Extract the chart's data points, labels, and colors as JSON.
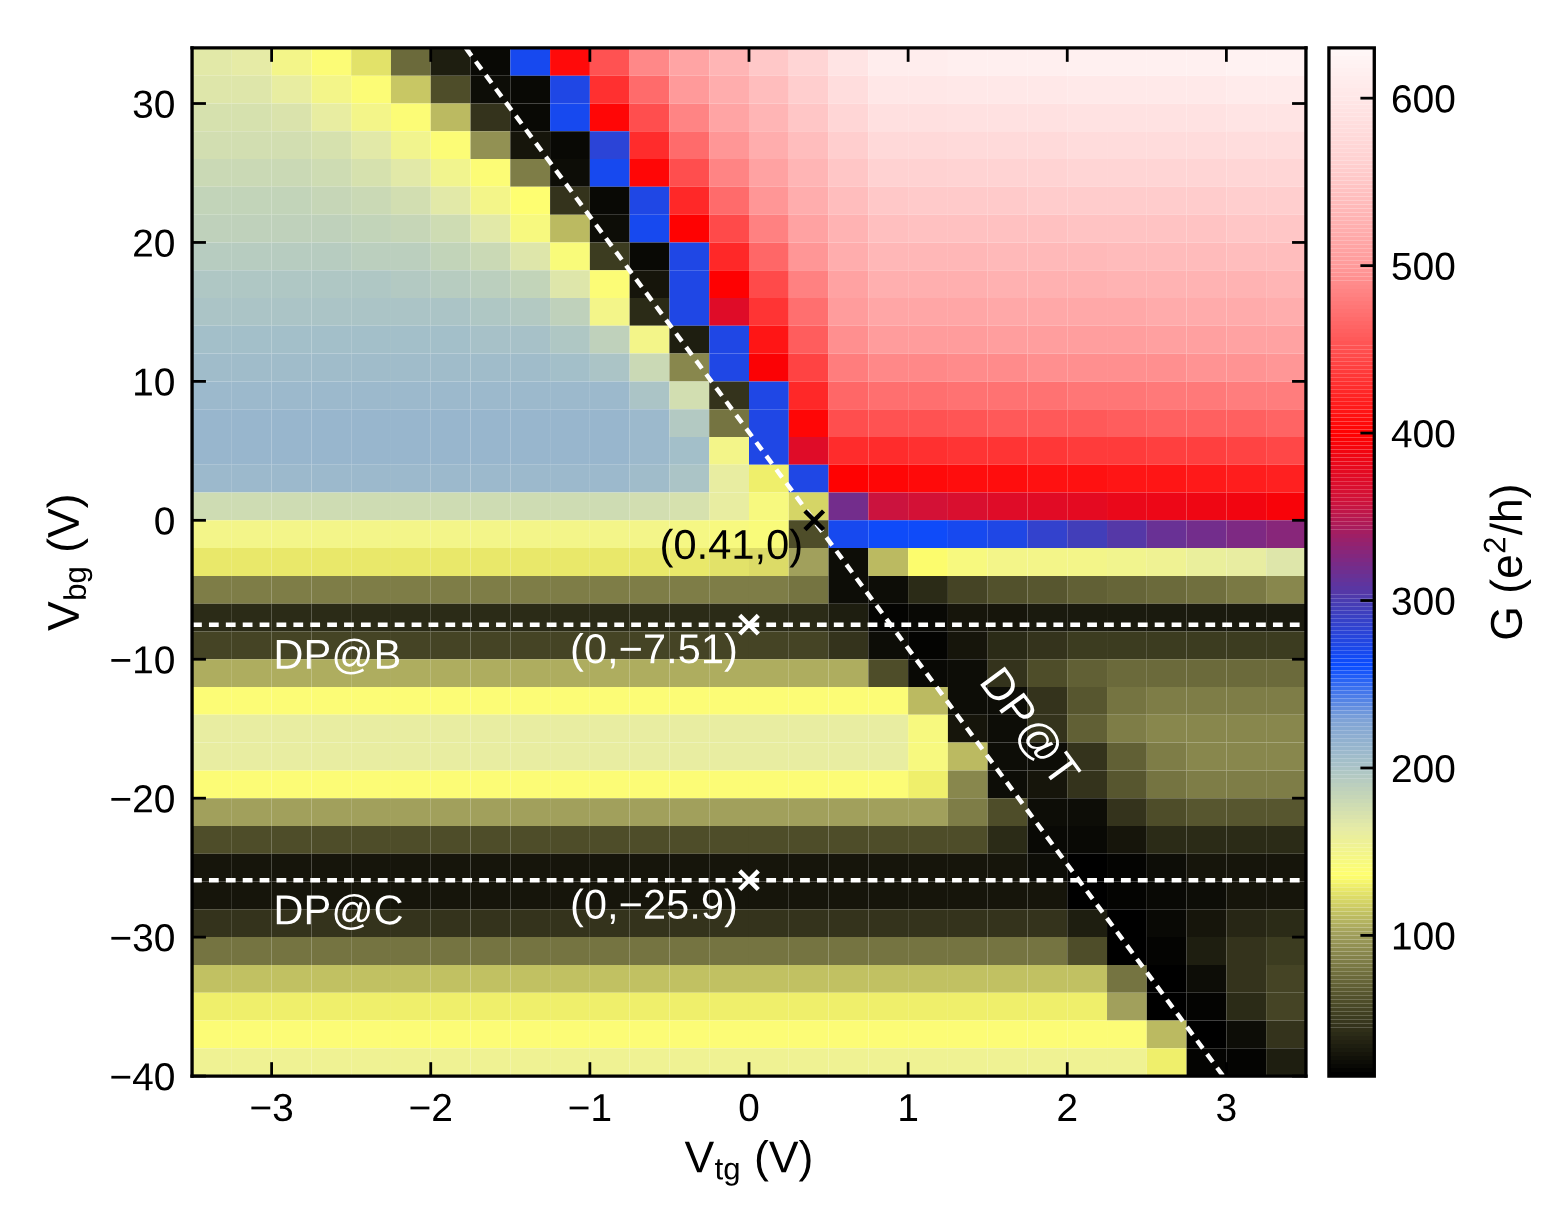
{
  "chart_data": {
    "type": "heatmap",
    "xlabel": "V$_{tg}$ (V)",
    "ylabel": "V$_{bg}$ (V)",
    "clabel": "G (e$^{2}$/h)",
    "x": [
      -3.375,
      -3.125,
      -2.875,
      -2.625,
      -2.375,
      -2.125,
      -1.875,
      -1.625,
      -1.375,
      -1.125,
      -0.875,
      -0.625,
      -0.375,
      -0.125,
      0.125,
      0.375,
      0.625,
      0.875,
      1.125,
      1.375,
      1.625,
      1.875,
      2.125,
      2.375,
      2.625,
      2.875,
      3.125,
      3.375
    ],
    "xlim": [
      -3.5,
      3.5
    ],
    "xticks": [
      {
        "value": -3,
        "label": "−3"
      },
      {
        "value": -2,
        "label": "−2"
      },
      {
        "value": -1,
        "label": "−1"
      },
      0,
      1,
      2,
      3
    ],
    "ylim": [
      -40,
      34
    ],
    "yticks": [
      {
        "value": -40,
        "label": "−40"
      },
      {
        "value": -30,
        "label": "−30"
      },
      {
        "value": -20,
        "label": "−20"
      },
      {
        "value": -10,
        "label": "−10"
      },
      0,
      10,
      20,
      30
    ],
    "clim": [
      16,
      630
    ],
    "cticks": [
      100,
      200,
      300,
      400,
      500,
      600
    ],
    "cells": [
      [
        165,
        163,
        150,
        140,
        125,
        75,
        35,
        22,
        270,
        406,
        452,
        487,
        512,
        531,
        551,
        570,
        595,
        612,
        613,
        614,
        614,
        615,
        616,
        617,
        617,
        618,
        619,
        620
      ],
      [
        168,
        168,
        162,
        150,
        140,
        115,
        60,
        25,
        22,
        275,
        429,
        469,
        499,
        521,
        541,
        560,
        583,
        600,
        601,
        602,
        602,
        603,
        604,
        605,
        605,
        606,
        607,
        608
      ],
      [
        172,
        172,
        170,
        162,
        150,
        140,
        110,
        45,
        22,
        270,
        404,
        450,
        486,
        511,
        531,
        550,
        571,
        588,
        589,
        590,
        590,
        591,
        592,
        593,
        593,
        594,
        595,
        596
      ],
      [
        176,
        176,
        175,
        172,
        165,
        152,
        140,
        95,
        28,
        22,
        280,
        427,
        468,
        498,
        521,
        540,
        560,
        576,
        577,
        578,
        578,
        579,
        580,
        581,
        581,
        582,
        583,
        584
      ],
      [
        180,
        180,
        180,
        178,
        174,
        166,
        152,
        140,
        85,
        25,
        270,
        403,
        449,
        484,
        510,
        530,
        550,
        564,
        565,
        566,
        566,
        567,
        568,
        569,
        569,
        570,
        571,
        572
      ],
      [
        184,
        184,
        184,
        183,
        180,
        176,
        166,
        150,
        138,
        45,
        22,
        275,
        426,
        467,
        498,
        521,
        540,
        553,
        554,
        554,
        555,
        556,
        557,
        557,
        558,
        558,
        559,
        560
      ],
      [
        188,
        188,
        188,
        188,
        186,
        183,
        178,
        165,
        145,
        110,
        25,
        270,
        401,
        447,
        483,
        509,
        529,
        543,
        544,
        545,
        545,
        546,
        547,
        547,
        548,
        548,
        549,
        550
      ],
      [
        192,
        192,
        192,
        192,
        191,
        189,
        186,
        180,
        168,
        142,
        50,
        22,
        275,
        424,
        466,
        497,
        520,
        533,
        534,
        534,
        535,
        536,
        536,
        537,
        538,
        538,
        539,
        540
      ],
      [
        196,
        196,
        196,
        196,
        196,
        195,
        193,
        190,
        184,
        168,
        140,
        30,
        275,
        399,
        446,
        482,
        508,
        523,
        524,
        524,
        525,
        526,
        526,
        527,
        528,
        528,
        529,
        530
      ],
      [
        200,
        200,
        200,
        200,
        200,
        200,
        199,
        197,
        194,
        188,
        150,
        40,
        275,
        372,
        432,
        471,
        501,
        513,
        514,
        514,
        515,
        516,
        516,
        517,
        518,
        518,
        519,
        520
      ],
      [
        204,
        204,
        204,
        204,
        204,
        204,
        204,
        203,
        201,
        197,
        188,
        150,
        35,
        275,
        413,
        458,
        491,
        501,
        502,
        502,
        503,
        504,
        505,
        505,
        506,
        507,
        508,
        509
      ],
      [
        207,
        207,
        207,
        207,
        207,
        207,
        207,
        207,
        206,
        204,
        200,
        180,
        90,
        275,
        395,
        442,
        479,
        487,
        488,
        489,
        490,
        491,
        492,
        493,
        493,
        494,
        495,
        496
      ],
      [
        210,
        210,
        210,
        210,
        210,
        210,
        210,
        210,
        210,
        210,
        208,
        200,
        175,
        45,
        275,
        425,
        466,
        470,
        471,
        472,
        473,
        474,
        475,
        476,
        477,
        478,
        480,
        481
      ],
      [
        212,
        212,
        212,
        212,
        212,
        212,
        212,
        212,
        212,
        212,
        212,
        208,
        195,
        80,
        275,
        403,
        449,
        451,
        452,
        454,
        455,
        456,
        457,
        459,
        460,
        461,
        462,
        463
      ],
      [
        212,
        212,
        212,
        212,
        212,
        212,
        212,
        212,
        212,
        212,
        212,
        210,
        205,
        150,
        275,
        373,
        427,
        428,
        430,
        431,
        433,
        434,
        436,
        437,
        439,
        440,
        442,
        443
      ],
      [
        208,
        208,
        208,
        208,
        208,
        208,
        208,
        208,
        208,
        208,
        208,
        206,
        200,
        160,
        130,
        275,
        402,
        404,
        405,
        407,
        408,
        410,
        411,
        413,
        414,
        416,
        417,
        419
      ],
      [
        178,
        178,
        178,
        178,
        178,
        178,
        178,
        178,
        178,
        178,
        178,
        176,
        172,
        160,
        145,
        120,
        320,
        358,
        362,
        368,
        371,
        375,
        378,
        381,
        384,
        387,
        390,
        393
      ],
      [
        150,
        150,
        150,
        150,
        150,
        150,
        150,
        150,
        150,
        150,
        150,
        148,
        146,
        145,
        142,
        60,
        270,
        265,
        265,
        270,
        275,
        285,
        295,
        305,
        315,
        320,
        325,
        330
      ],
      [
        128,
        128,
        128,
        128,
        128,
        128,
        128,
        128,
        128,
        128,
        128,
        128,
        127,
        125,
        122,
        100,
        25,
        110,
        135,
        145,
        148,
        150,
        150,
        152,
        155,
        158,
        162,
        168
      ],
      [
        85,
        85,
        85,
        85,
        85,
        85,
        85,
        85,
        85,
        85,
        85,
        85,
        85,
        85,
        85,
        80,
        25,
        25,
        40,
        55,
        62,
        66,
        70,
        72,
        75,
        78,
        82,
        88
      ],
      [
        40,
        40,
        40,
        40,
        40,
        40,
        40,
        40,
        40,
        40,
        40,
        40,
        40,
        40,
        40,
        40,
        35,
        20,
        22,
        28,
        30,
        32,
        32,
        32,
        32,
        32,
        32,
        32
      ],
      [
        55,
        55,
        55,
        55,
        55,
        55,
        55,
        55,
        55,
        55,
        55,
        55,
        55,
        55,
        55,
        55,
        45,
        25,
        20,
        30,
        40,
        45,
        50,
        50,
        50,
        50,
        50,
        50
      ],
      [
        105,
        105,
        105,
        105,
        105,
        105,
        105,
        105,
        105,
        105,
        105,
        105,
        105,
        105,
        105,
        105,
        105,
        60,
        22,
        25,
        45,
        60,
        70,
        75,
        75,
        75,
        75,
        75
      ],
      [
        140,
        140,
        140,
        140,
        140,
        140,
        140,
        140,
        140,
        140,
        140,
        140,
        140,
        140,
        140,
        140,
        140,
        140,
        110,
        25,
        25,
        45,
        65,
        80,
        85,
        85,
        85,
        85
      ],
      [
        162,
        162,
        162,
        162,
        162,
        162,
        162,
        162,
        162,
        162,
        162,
        162,
        162,
        162,
        162,
        162,
        162,
        160,
        145,
        30,
        25,
        45,
        70,
        85,
        90,
        90,
        90,
        90
      ],
      [
        162,
        162,
        162,
        162,
        162,
        162,
        162,
        162,
        162,
        162,
        162,
        162,
        162,
        162,
        162,
        162,
        162,
        162,
        145,
        110,
        25,
        25,
        45,
        70,
        85,
        88,
        88,
        88
      ],
      [
        140,
        140,
        140,
        140,
        140,
        140,
        140,
        140,
        140,
        140,
        140,
        140,
        140,
        140,
        140,
        140,
        140,
        140,
        130,
        90,
        25,
        28,
        45,
        65,
        80,
        85,
        85,
        85
      ],
      [
        100,
        100,
        100,
        100,
        100,
        100,
        100,
        100,
        100,
        100,
        100,
        100,
        100,
        100,
        100,
        100,
        100,
        100,
        100,
        85,
        60,
        25,
        25,
        45,
        60,
        65,
        65,
        65
      ],
      [
        60,
        60,
        60,
        60,
        60,
        60,
        60,
        60,
        60,
        60,
        60,
        60,
        60,
        60,
        60,
        60,
        60,
        60,
        60,
        60,
        40,
        22,
        22,
        30,
        40,
        42,
        42,
        42
      ],
      [
        30,
        30,
        30,
        30,
        30,
        30,
        30,
        30,
        30,
        30,
        30,
        30,
        30,
        30,
        30,
        30,
        30,
        30,
        30,
        30,
        30,
        25,
        18,
        20,
        25,
        28,
        30,
        30
      ],
      [
        28,
        28,
        28,
        28,
        28,
        28,
        28,
        28,
        28,
        28,
        28,
        28,
        28,
        28,
        28,
        28,
        28,
        28,
        28,
        28,
        28,
        28,
        18,
        20,
        22,
        25,
        28,
        28
      ],
      [
        45,
        45,
        45,
        45,
        45,
        45,
        45,
        45,
        45,
        45,
        45,
        45,
        45,
        45,
        45,
        45,
        45,
        45,
        45,
        45,
        45,
        45,
        35,
        18,
        22,
        30,
        38,
        40
      ],
      [
        80,
        80,
        80,
        80,
        80,
        80,
        80,
        80,
        80,
        80,
        80,
        80,
        80,
        80,
        80,
        80,
        80,
        80,
        80,
        80,
        80,
        80,
        60,
        18,
        20,
        35,
        45,
        50
      ],
      [
        112,
        112,
        112,
        112,
        112,
        112,
        112,
        112,
        112,
        112,
        112,
        112,
        112,
        112,
        112,
        112,
        112,
        112,
        112,
        112,
        112,
        112,
        112,
        80,
        18,
        25,
        45,
        55
      ],
      [
        130,
        130,
        130,
        130,
        130,
        130,
        130,
        130,
        130,
        130,
        130,
        130,
        130,
        130,
        130,
        130,
        130,
        130,
        130,
        130,
        130,
        130,
        130,
        100,
        18,
        20,
        40,
        55
      ],
      [
        140,
        140,
        140,
        140,
        140,
        140,
        140,
        140,
        140,
        140,
        140,
        140,
        140,
        140,
        140,
        140,
        140,
        140,
        140,
        140,
        140,
        140,
        140,
        140,
        110,
        18,
        25,
        45
      ],
      [
        155,
        155,
        155,
        155,
        155,
        155,
        155,
        155,
        155,
        155,
        155,
        155,
        155,
        155,
        155,
        155,
        155,
        155,
        155,
        155,
        155,
        155,
        155,
        155,
        130,
        20,
        20,
        35
      ]
    ],
    "ref_lines": [
      {
        "axis": "y",
        "value": -7.51,
        "label": "DP@B",
        "color": "#ffffff",
        "line_style": "dashed"
      },
      {
        "axis": "y",
        "value": -25.9,
        "label": "DP@C",
        "color": "#ffffff",
        "line_style": "dashed"
      }
    ],
    "series": [
      {
        "type": "line",
        "name": "DP@T",
        "x": [
          -1.78,
          2.98
        ],
        "values": [
          34,
          -40
        ],
        "color": "#ffffff",
        "line_style": "dashed"
      },
      {
        "type": "scatter",
        "x": [
          0.41,
          0,
          0
        ],
        "values": [
          0,
          -7.51,
          -25.9
        ],
        "colors": [
          "#000000",
          "#ffffff",
          "#ffffff"
        ],
        "marker": "cross",
        "value_labels": [
          "(0.41,0)",
          "(0,−7.51)",
          "(0,−25.9)"
        ]
      }
    ]
  }
}
